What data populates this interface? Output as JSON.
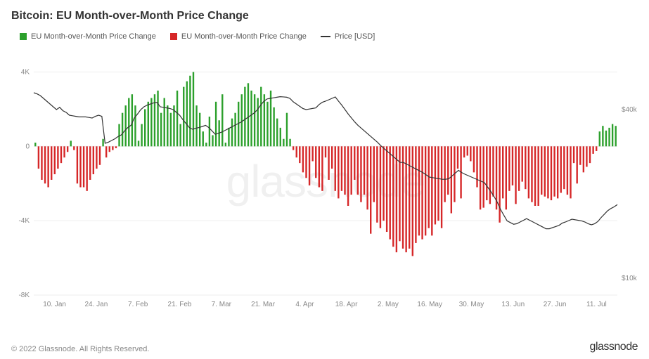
{
  "title": "Bitcoin: EU Month-over-Month Price Change",
  "watermark": "glassnode",
  "footer_copyright": "© 2022 Glassnode. All Rights Reserved.",
  "footer_brand": "glassnode",
  "legend": [
    {
      "label": "EU Month-over-Month Price Change",
      "color": "#2ca02c",
      "type": "box"
    },
    {
      "label": "EU Month-over-Month Price Change",
      "color": "#d62728",
      "type": "box"
    },
    {
      "label": "Price [USD]",
      "color": "#333333",
      "type": "line"
    }
  ],
  "chart": {
    "type": "bar+line",
    "background_color": "#ffffff",
    "grid_color": "#eeeeee",
    "left_axis": {
      "ylim": [
        -8000,
        5000
      ],
      "ticks": [
        -8000,
        -4000,
        0,
        4000
      ],
      "tick_labels": [
        "-8K",
        "-4K",
        "0",
        "4K"
      ]
    },
    "right_axis": {
      "ylim": [
        7000,
        50000
      ],
      "ticks": [
        10000,
        40000
      ],
      "tick_labels": [
        "$10k",
        "$40k"
      ]
    },
    "x_tick_labels": [
      "10. Jan",
      "24. Jan",
      "7. Feb",
      "21. Feb",
      "7. Mar",
      "21. Mar",
      "4. Apr",
      "18. Apr",
      "2. May",
      "16. May",
      "30. May",
      "13. Jun",
      "27. Jun",
      "11. Jul"
    ],
    "bars": {
      "pos_color": "#2ca02c",
      "neg_color": "#d62728",
      "bar_width_frac": 0.52,
      "values": [
        200,
        -1200,
        -1800,
        -2000,
        -2200,
        -1800,
        -1500,
        -1200,
        -900,
        -600,
        -300,
        300,
        -200,
        -2000,
        -2200,
        -2200,
        -2400,
        -1800,
        -1500,
        -1200,
        -1000,
        400,
        -600,
        -300,
        -200,
        -100,
        1200,
        1800,
        2200,
        2600,
        2800,
        2200,
        300,
        1200,
        2000,
        2400,
        2600,
        2800,
        3000,
        1800,
        2600,
        2200,
        1800,
        2200,
        3000,
        1200,
        3200,
        3500,
        3800,
        4000,
        2200,
        1800,
        800,
        200,
        1600,
        600,
        2400,
        1400,
        2800,
        200,
        1000,
        1500,
        1800,
        2400,
        2800,
        3200,
        3400,
        3000,
        2800,
        2600,
        3200,
        2800,
        2400,
        3000,
        2100,
        1500,
        1000,
        400,
        1800,
        400,
        -200,
        -600,
        -900,
        -1400,
        -1700,
        -2100,
        -800,
        -1700,
        -2200,
        -2400,
        -600,
        -1800,
        -1200,
        -2400,
        -2800,
        -2400,
        -2600,
        -3200,
        -2600,
        -1800,
        -2600,
        -3000,
        -2600,
        -3400,
        -4700,
        -3000,
        -4100,
        -4400,
        -4000,
        -4600,
        -5000,
        -5400,
        -5700,
        -5100,
        -5500,
        -5700,
        -5500,
        -5900,
        -5200,
        -4800,
        -5000,
        -4800,
        -4400,
        -4800,
        -4200,
        -4000,
        -4400,
        -3000,
        -2600,
        -3600,
        -3000,
        -1200,
        -2800,
        -600,
        -500,
        -800,
        -1400,
        -2200,
        -3400,
        -3300,
        -2900,
        -3100,
        -2700,
        -3400,
        -4100,
        -2800,
        -3400,
        -2400,
        -2100,
        -3100,
        -2400,
        -1900,
        -2300,
        -2800,
        -3000,
        -3200,
        -3200,
        -2600,
        -2700,
        -2800,
        -2900,
        -2700,
        -2800,
        -2500,
        -2300,
        -2600,
        -2800,
        -900,
        -2000,
        -1000,
        -1400,
        -1100,
        -900,
        -400,
        -250,
        800,
        1100,
        850,
        1000,
        1200,
        1100
      ]
    },
    "price_line": {
      "color": "#333333",
      "width": 1.2,
      "values": [
        43000,
        42800,
        42500,
        42000,
        41500,
        41000,
        40500,
        40000,
        40400,
        39800,
        39500,
        39000,
        38900,
        38800,
        38700,
        38700,
        38700,
        38600,
        38500,
        38800,
        39000,
        38800,
        34000,
        34200,
        34500,
        34800,
        35200,
        35500,
        36200,
        36800,
        37200,
        38500,
        39200,
        40000,
        40500,
        40800,
        41000,
        41200,
        41300,
        40500,
        40400,
        40300,
        40200,
        40000,
        39500,
        39000,
        38200,
        37500,
        36800,
        36500,
        36700,
        36800,
        37000,
        37200,
        36800,
        36200,
        35600,
        35800,
        36000,
        36300,
        36600,
        36900,
        37200,
        37500,
        37800,
        38200,
        38600,
        39000,
        39400,
        40000,
        40800,
        41500,
        41900,
        42000,
        42100,
        42200,
        42300,
        42260,
        42200,
        42000,
        41400,
        41000,
        40600,
        40200,
        40000,
        40100,
        40200,
        40300,
        40900,
        41300,
        41500,
        41750,
        42000,
        42250,
        41500,
        40800,
        40000,
        39200,
        38500,
        37800,
        37200,
        36700,
        36200,
        35700,
        35200,
        34700,
        34200,
        33600,
        33100,
        32600,
        32100,
        31600,
        31100,
        30600,
        30600,
        30300,
        30000,
        29700,
        29400,
        29100,
        28800,
        28400,
        28000,
        27900,
        27800,
        27700,
        27600,
        27600,
        27700,
        28200,
        28700,
        29200,
        28800,
        28500,
        28250,
        28000,
        27750,
        27500,
        27250,
        27000,
        26200,
        25400,
        24500,
        23500,
        22200,
        21200,
        20200,
        19900,
        19600,
        19700,
        20000,
        20300,
        20600,
        20300,
        20000,
        19700,
        19400,
        19100,
        18800,
        18800,
        19000,
        19200,
        19400,
        19800,
        20000,
        20250,
        20500,
        20400,
        20300,
        20200,
        20000,
        19700,
        19500,
        19700,
        20100,
        20800,
        21400,
        22000,
        22400,
        22700,
        23100
      ]
    }
  }
}
